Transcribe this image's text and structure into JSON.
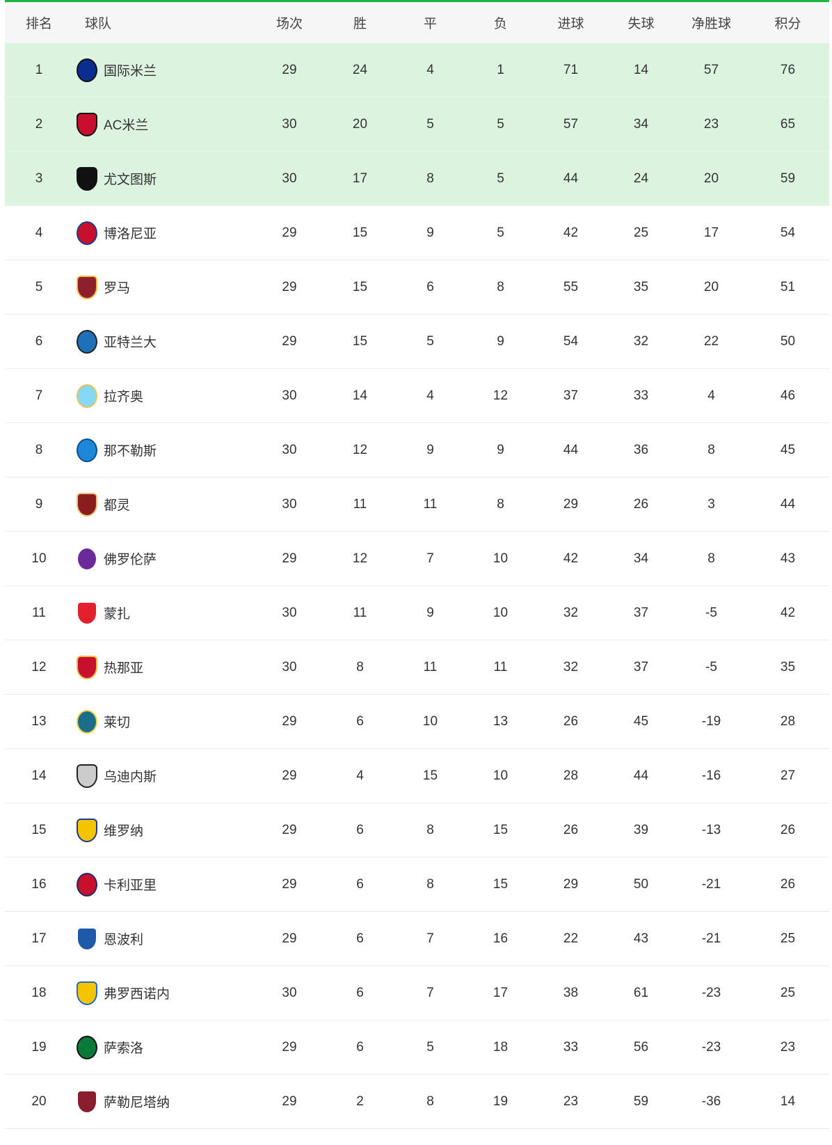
{
  "header": [
    "排名",
    "球队",
    "场次",
    "胜",
    "平",
    "负",
    "进球",
    "失球",
    "净胜球",
    "积分"
  ],
  "colors": {
    "accent": "#1db43d",
    "highlight_row": "#dcf3e0",
    "header_bg": "#f6f6f6"
  },
  "highlight_top": 3,
  "rows": [
    {
      "rank": "1",
      "team": "国际米兰",
      "logo": "inter-logo",
      "c": [
        "#0b2d8f",
        "#111"
      ],
      "played": "29",
      "w": "24",
      "d": "4",
      "l": "1",
      "gf": "71",
      "ga": "14",
      "gd": "57",
      "pts": "76"
    },
    {
      "rank": "2",
      "team": "AC米兰",
      "logo": "ac-milan-logo",
      "c": [
        "#c8102e",
        "#111"
      ],
      "played": "30",
      "w": "20",
      "d": "5",
      "l": "5",
      "gf": "57",
      "ga": "34",
      "gd": "23",
      "pts": "65"
    },
    {
      "rank": "3",
      "team": "尤文图斯",
      "logo": "juventus-logo",
      "c": [
        "#111",
        "#111"
      ],
      "played": "30",
      "w": "17",
      "d": "8",
      "l": "5",
      "gf": "44",
      "ga": "24",
      "gd": "20",
      "pts": "59"
    },
    {
      "rank": "4",
      "team": "博洛尼亚",
      "logo": "bologna-logo",
      "c": [
        "#c8102e",
        "#1a3c8c"
      ],
      "played": "29",
      "w": "15",
      "d": "9",
      "l": "5",
      "gf": "42",
      "ga": "25",
      "gd": "17",
      "pts": "54"
    },
    {
      "rank": "5",
      "team": "罗马",
      "logo": "roma-logo",
      "c": [
        "#8e1f2f",
        "#f0bc42"
      ],
      "played": "29",
      "w": "15",
      "d": "6",
      "l": "8",
      "gf": "55",
      "ga": "35",
      "gd": "20",
      "pts": "51"
    },
    {
      "rank": "6",
      "team": "亚特兰大",
      "logo": "atalanta-logo",
      "c": [
        "#1e71b8",
        "#222"
      ],
      "played": "29",
      "w": "15",
      "d": "5",
      "l": "9",
      "gf": "54",
      "ga": "32",
      "gd": "22",
      "pts": "50"
    },
    {
      "rank": "7",
      "team": "拉齐奥",
      "logo": "lazio-logo",
      "c": [
        "#87d8f7",
        "#e7c35a"
      ],
      "played": "30",
      "w": "14",
      "d": "4",
      "l": "12",
      "gf": "37",
      "ga": "33",
      "gd": "4",
      "pts": "46"
    },
    {
      "rank": "8",
      "team": "那不勒斯",
      "logo": "napoli-logo",
      "c": [
        "#1e88d8",
        "#0b4d8c"
      ],
      "played": "30",
      "w": "12",
      "d": "9",
      "l": "9",
      "gf": "44",
      "ga": "36",
      "gd": "8",
      "pts": "45"
    },
    {
      "rank": "9",
      "team": "都灵",
      "logo": "torino-logo",
      "c": [
        "#8a1e1e",
        "#e8c37a"
      ],
      "played": "30",
      "w": "11",
      "d": "11",
      "l": "8",
      "gf": "29",
      "ga": "26",
      "gd": "3",
      "pts": "44"
    },
    {
      "rank": "10",
      "team": "佛罗伦萨",
      "logo": "fiorentina-logo",
      "c": [
        "#6a2a9c",
        "#fff"
      ],
      "played": "29",
      "w": "12",
      "d": "7",
      "l": "10",
      "gf": "42",
      "ga": "34",
      "gd": "8",
      "pts": "43"
    },
    {
      "rank": "11",
      "team": "蒙扎",
      "logo": "monza-logo",
      "c": [
        "#e4202e",
        "#fff"
      ],
      "played": "30",
      "w": "11",
      "d": "9",
      "l": "10",
      "gf": "32",
      "ga": "37",
      "gd": "-5",
      "pts": "42"
    },
    {
      "rank": "12",
      "team": "热那亚",
      "logo": "genoa-logo",
      "c": [
        "#c8102e",
        "#f0bc42"
      ],
      "played": "30",
      "w": "8",
      "d": "11",
      "l": "11",
      "gf": "32",
      "ga": "37",
      "gd": "-5",
      "pts": "35"
    },
    {
      "rank": "13",
      "team": "莱切",
      "logo": "lecce-logo",
      "c": [
        "#1c6c8c",
        "#f0d040"
      ],
      "played": "29",
      "w": "6",
      "d": "10",
      "l": "13",
      "gf": "26",
      "ga": "45",
      "gd": "-19",
      "pts": "28"
    },
    {
      "rank": "14",
      "team": "乌迪内斯",
      "logo": "udinese-logo",
      "c": [
        "#ccc",
        "#222"
      ],
      "played": "29",
      "w": "4",
      "d": "15",
      "l": "10",
      "gf": "28",
      "ga": "44",
      "gd": "-16",
      "pts": "27"
    },
    {
      "rank": "15",
      "team": "维罗纳",
      "logo": "verona-logo",
      "c": [
        "#f5c400",
        "#1a3c8c"
      ],
      "played": "29",
      "w": "6",
      "d": "8",
      "l": "15",
      "gf": "26",
      "ga": "39",
      "gd": "-13",
      "pts": "26"
    },
    {
      "rank": "16",
      "team": "卡利亚里",
      "logo": "cagliari-logo",
      "c": [
        "#c8102e",
        "#1a2c6c"
      ],
      "played": "29",
      "w": "6",
      "d": "8",
      "l": "15",
      "gf": "29",
      "ga": "50",
      "gd": "-21",
      "pts": "26"
    },
    {
      "rank": "17",
      "team": "恩波利",
      "logo": "empoli-logo",
      "c": [
        "#1e5aa8",
        "#fff"
      ],
      "played": "29",
      "w": "6",
      "d": "7",
      "l": "16",
      "gf": "22",
      "ga": "43",
      "gd": "-21",
      "pts": "25"
    },
    {
      "rank": "18",
      "team": "弗罗西诺内",
      "logo": "frosinone-logo",
      "c": [
        "#f5c400",
        "#1e6cc8"
      ],
      "played": "30",
      "w": "6",
      "d": "7",
      "l": "17",
      "gf": "38",
      "ga": "61",
      "gd": "-23",
      "pts": "25"
    },
    {
      "rank": "19",
      "team": "萨索洛",
      "logo": "sassuolo-logo",
      "c": [
        "#0a7a3a",
        "#111"
      ],
      "played": "29",
      "w": "6",
      "d": "5",
      "l": "18",
      "gf": "33",
      "ga": "56",
      "gd": "-23",
      "pts": "23"
    },
    {
      "rank": "20",
      "team": "萨勒尼塔纳",
      "logo": "salernitana-logo",
      "c": [
        "#8a1e2e",
        "#fff"
      ],
      "played": "29",
      "w": "2",
      "d": "8",
      "l": "19",
      "gf": "23",
      "ga": "59",
      "gd": "-36",
      "pts": "14"
    }
  ]
}
